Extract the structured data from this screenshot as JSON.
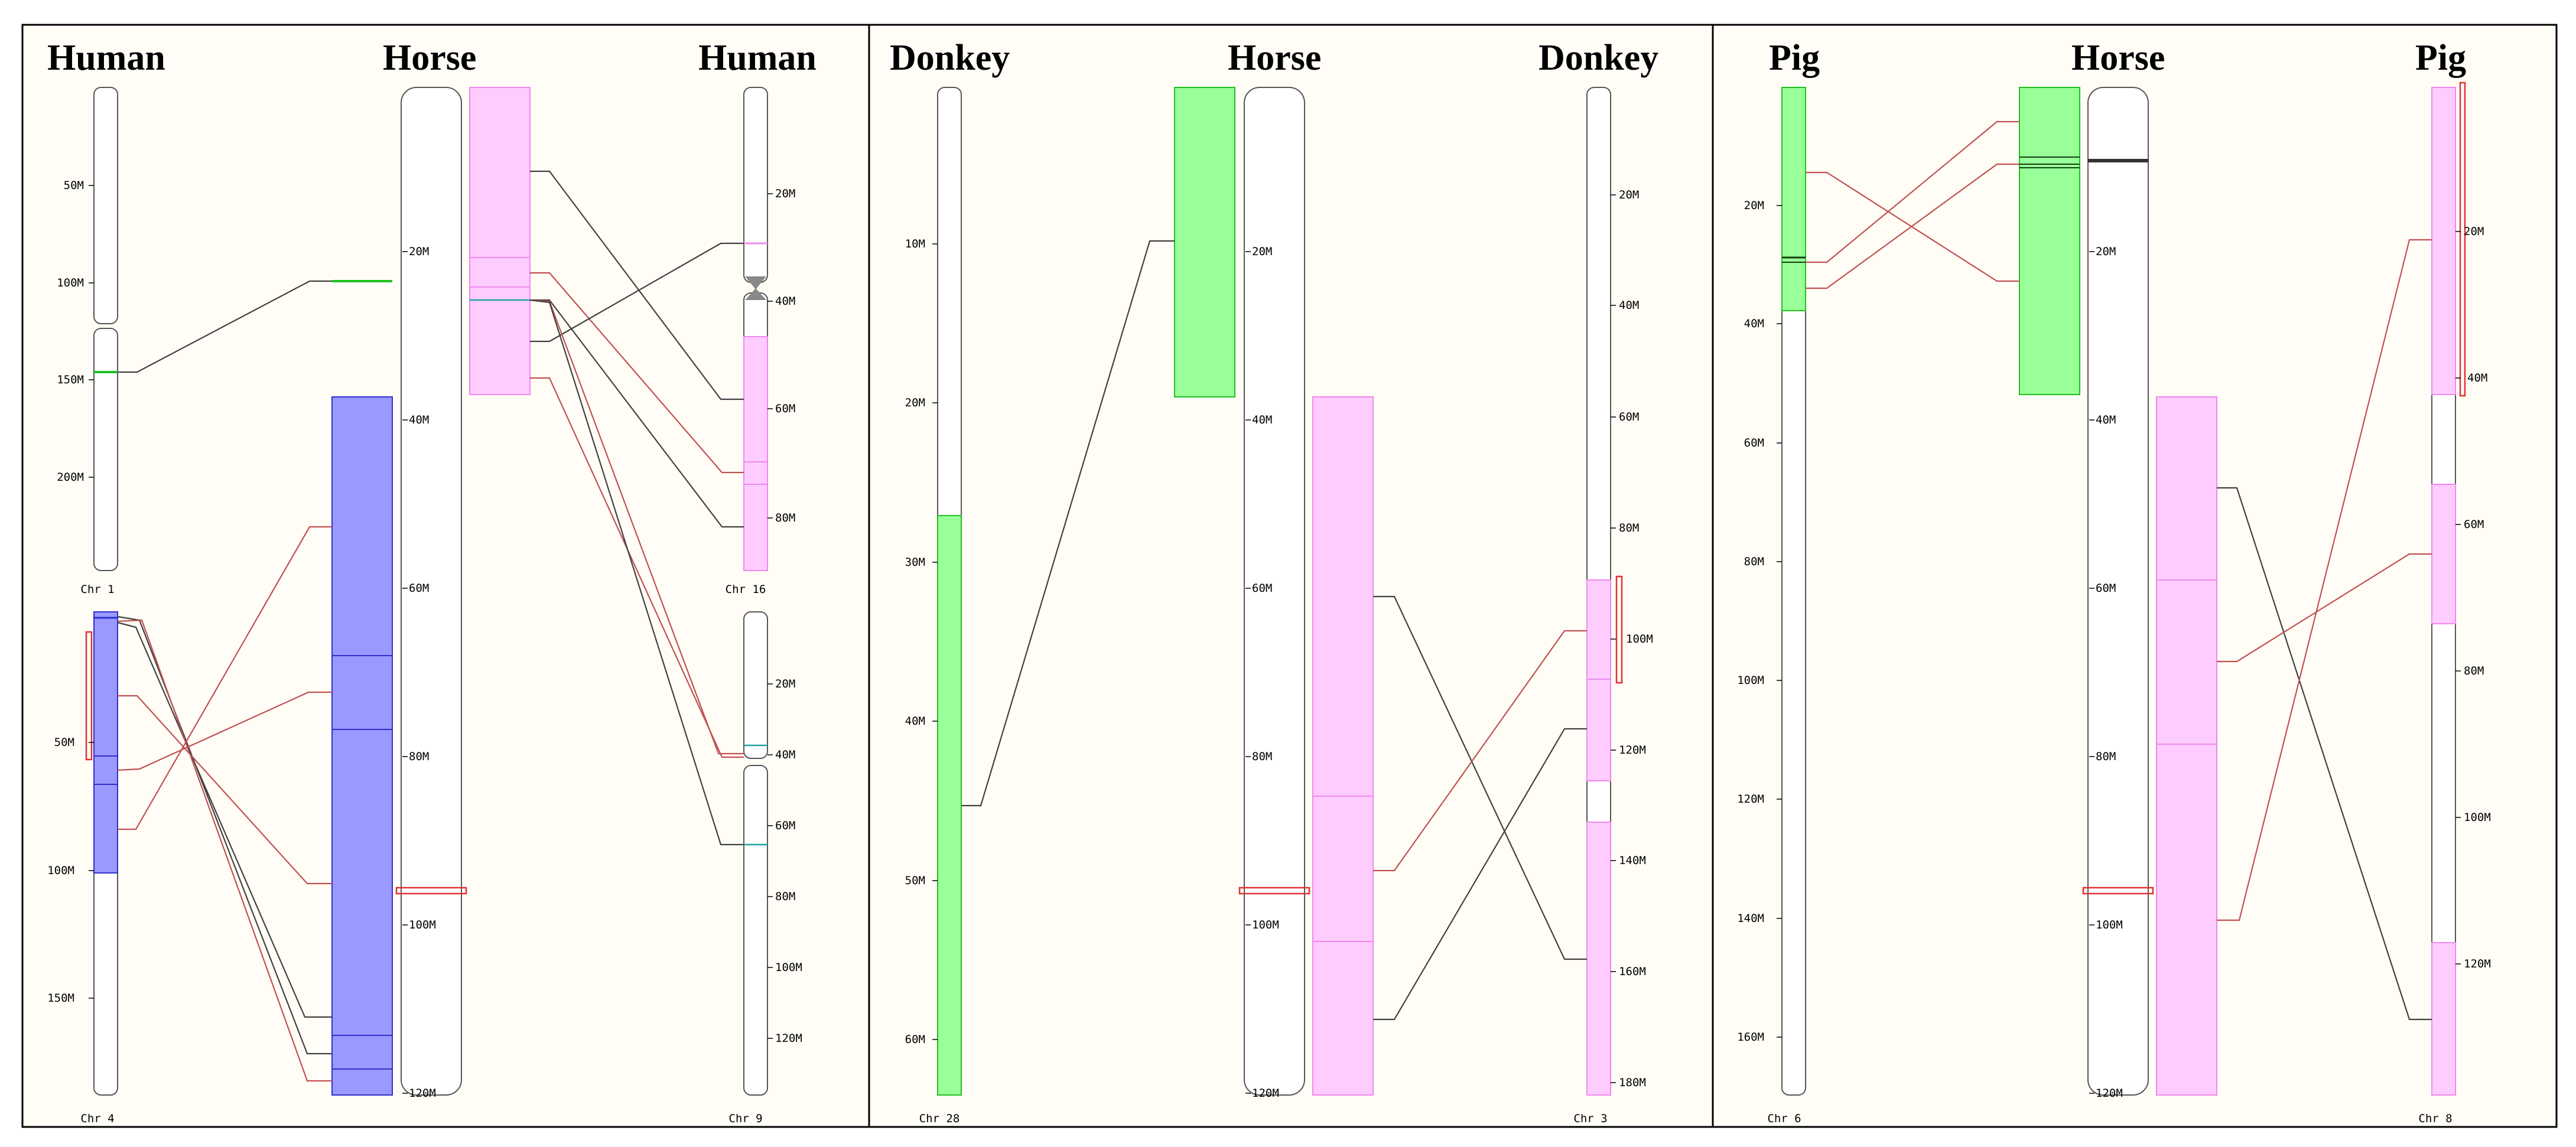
{
  "panels": [
    {
      "titles": [
        "Human",
        "Horse",
        "Human"
      ],
      "left_chromosomes": [
        {
          "label": "Chr 1",
          "ticks": [
            "50M",
            "100M",
            "150M",
            "200M"
          ]
        },
        {
          "label": "Chr 4",
          "ticks": [
            "50M",
            "100M",
            "150M"
          ]
        }
      ],
      "center_chromosome": {
        "ticks": [
          "20M",
          "40M",
          "60M",
          "80M",
          "100M",
          "120M"
        ]
      },
      "right_chromosomes": [
        {
          "label": "Chr 16",
          "ticks": [
            "20M",
            "40M",
            "60M",
            "80M"
          ]
        },
        {
          "label": "Chr 9",
          "ticks": [
            "20M",
            "40M",
            "60M",
            "80M",
            "100M",
            "120M"
          ]
        }
      ]
    },
    {
      "titles": [
        "Donkey",
        "Horse",
        "Donkey"
      ],
      "left_chromosomes": [
        {
          "label": "Chr 28",
          "ticks": [
            "10M",
            "20M",
            "30M",
            "40M",
            "50M",
            "60M"
          ]
        }
      ],
      "center_chromosome": {
        "ticks": [
          "20M",
          "40M",
          "60M",
          "80M",
          "100M",
          "120M"
        ]
      },
      "right_chromosomes": [
        {
          "label": "Chr 3",
          "ticks": [
            "20M",
            "40M",
            "60M",
            "80M",
            "100M",
            "120M",
            "140M",
            "160M",
            "180M"
          ]
        }
      ]
    },
    {
      "titles": [
        "Pig",
        "Horse",
        "Pig"
      ],
      "left_chromosomes": [
        {
          "label": "Chr 6",
          "ticks": [
            "20M",
            "40M",
            "60M",
            "80M",
            "100M",
            "120M",
            "140M",
            "160M"
          ]
        }
      ],
      "center_chromosome": {
        "ticks": [
          "20M",
          "40M",
          "60M",
          "80M",
          "100M",
          "120M"
        ]
      },
      "right_chromosomes": [
        {
          "label": "Chr 8",
          "ticks": [
            "20M",
            "40M",
            "60M",
            "80M",
            "100M",
            "120M"
          ]
        }
      ]
    }
  ],
  "colors": {
    "green_block": "#99ff99",
    "blue_block": "#9999ff",
    "pink_block": "#ffccff",
    "red_link": "#c05050",
    "dark_link": "#404040",
    "background": "#fffdf6"
  }
}
